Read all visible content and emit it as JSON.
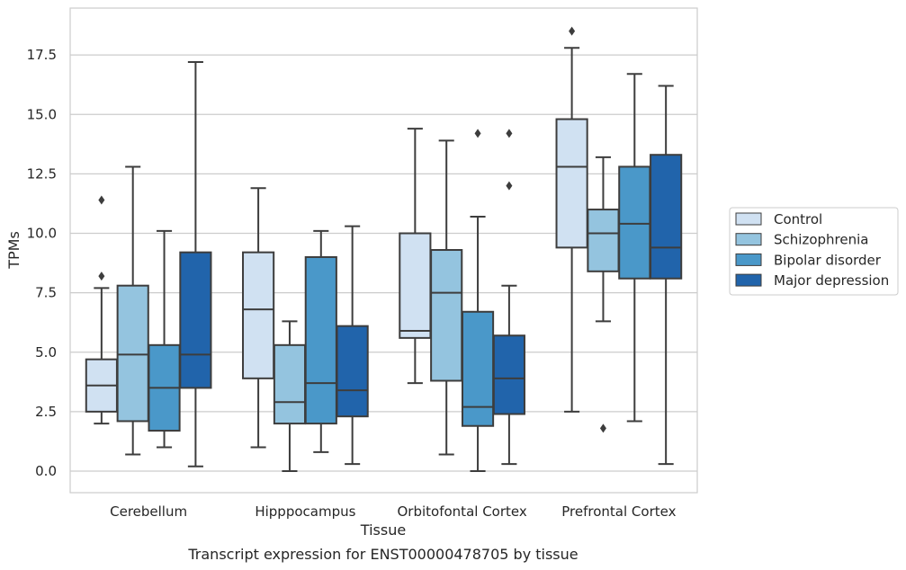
{
  "chart_data": {
    "type": "box",
    "xlabel": "Tissue",
    "ylabel": "TPMs",
    "caption": "Transcript expression for ENST00000478705 by tissue",
    "ylim": [
      -0.9,
      19.4
    ],
    "yticks": [
      "0.0",
      "2.5",
      "5.0",
      "7.5",
      "10.0",
      "12.5",
      "15.0",
      "17.5"
    ],
    "ytick_values": [
      0,
      2.5,
      5,
      7.5,
      10,
      12.5,
      15,
      17.5
    ],
    "grid": "horizontal",
    "legend_position": "right",
    "categories": [
      "Cerebellum",
      "Hipppocampus",
      "Orbitofontal Cortex",
      "Prefrontal Cortex"
    ],
    "series": [
      {
        "name": "Control",
        "color": "#d0e1f2",
        "boxes": [
          {
            "whisker_low": 2.0,
            "q1": 2.5,
            "median": 3.6,
            "q3": 4.7,
            "whisker_high": 7.7,
            "outliers": [
              8.2,
              11.4
            ]
          },
          {
            "whisker_low": 1.0,
            "q1": 3.9,
            "median": 6.8,
            "q3": 9.2,
            "whisker_high": 11.9,
            "outliers": []
          },
          {
            "whisker_low": 3.7,
            "q1": 5.6,
            "median": 5.9,
            "q3": 10.0,
            "whisker_high": 14.4,
            "outliers": []
          },
          {
            "whisker_low": 2.5,
            "q1": 9.4,
            "median": 12.8,
            "q3": 14.8,
            "whisker_high": 17.8,
            "outliers": [
              18.5
            ]
          }
        ]
      },
      {
        "name": "Schizophrenia",
        "color": "#94c4df",
        "boxes": [
          {
            "whisker_low": 0.7,
            "q1": 2.1,
            "median": 4.9,
            "q3": 7.8,
            "whisker_high": 12.8,
            "outliers": []
          },
          {
            "whisker_low": 0.0,
            "q1": 2.0,
            "median": 2.9,
            "q3": 5.3,
            "whisker_high": 6.3,
            "outliers": []
          },
          {
            "whisker_low": 0.7,
            "q1": 3.8,
            "median": 7.5,
            "q3": 9.3,
            "whisker_high": 13.9,
            "outliers": []
          },
          {
            "whisker_low": 6.3,
            "q1": 8.4,
            "median": 10.0,
            "q3": 11.0,
            "whisker_high": 13.2,
            "outliers": [
              1.8
            ]
          }
        ]
      },
      {
        "name": "Bipolar disorder",
        "color": "#4a98c9",
        "boxes": [
          {
            "whisker_low": 1.0,
            "q1": 1.7,
            "median": 3.5,
            "q3": 5.3,
            "whisker_high": 10.1,
            "outliers": []
          },
          {
            "whisker_low": 0.8,
            "q1": 2.0,
            "median": 3.7,
            "q3": 9.0,
            "whisker_high": 10.1,
            "outliers": []
          },
          {
            "whisker_low": 0.0,
            "q1": 1.9,
            "median": 2.7,
            "q3": 6.7,
            "whisker_high": 10.7,
            "outliers": [
              14.2
            ]
          },
          {
            "whisker_low": 2.1,
            "q1": 8.1,
            "median": 10.4,
            "q3": 12.8,
            "whisker_high": 16.7,
            "outliers": []
          }
        ]
      },
      {
        "name": "Major depression",
        "color": "#2164ab",
        "boxes": [
          {
            "whisker_low": 0.2,
            "q1": 3.5,
            "median": 4.9,
            "q3": 9.2,
            "whisker_high": 17.2,
            "outliers": []
          },
          {
            "whisker_low": 0.3,
            "q1": 2.3,
            "median": 3.4,
            "q3": 6.1,
            "whisker_high": 10.3,
            "outliers": []
          },
          {
            "whisker_low": 0.3,
            "q1": 2.4,
            "median": 3.9,
            "q3": 5.7,
            "whisker_high": 7.8,
            "outliers": [
              12.0,
              14.2
            ]
          },
          {
            "whisker_low": 0.3,
            "q1": 8.1,
            "median": 9.4,
            "q3": 13.3,
            "whisker_high": 16.2,
            "outliers": []
          }
        ]
      }
    ]
  }
}
